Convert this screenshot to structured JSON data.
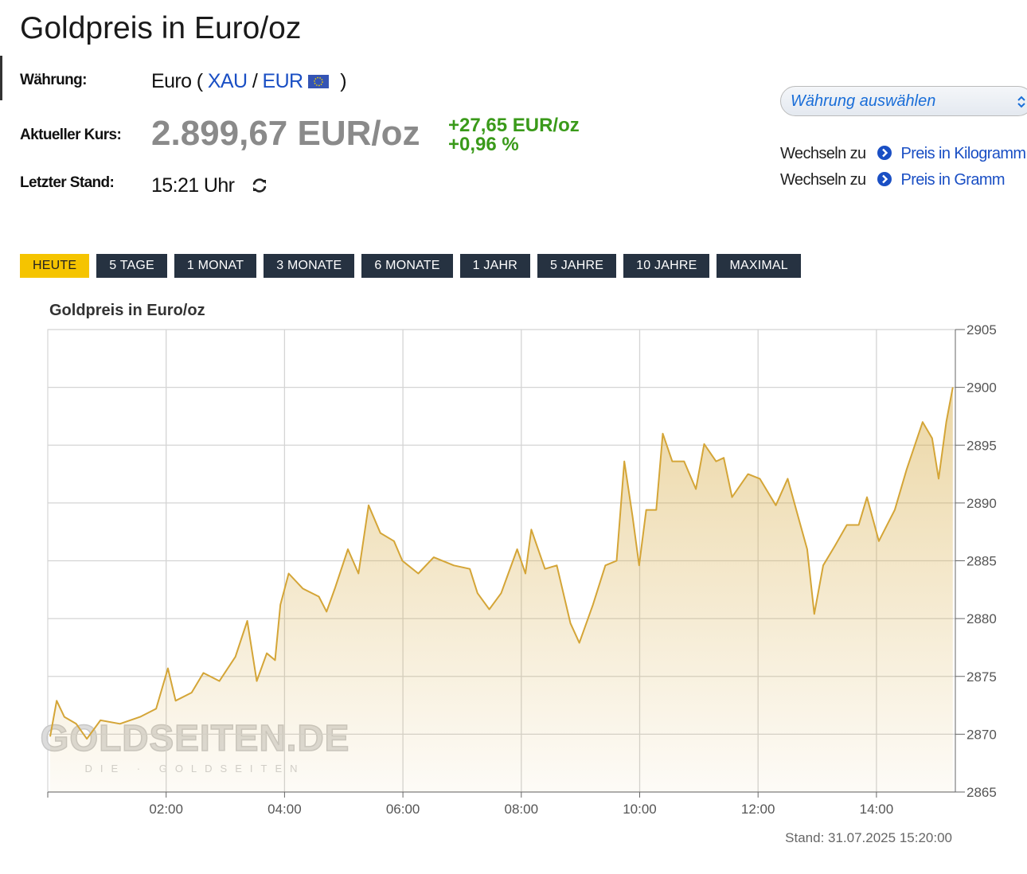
{
  "header": {
    "title": "Goldpreis in Euro/oz"
  },
  "info": {
    "currency_label": "Währung:",
    "currency_prefix": "Euro (",
    "base": "XAU",
    "separator": "/",
    "quote": "EUR",
    "currency_suffix": ")",
    "price_label": "Aktueller Kurs:",
    "price": "2.899,67 EUR/oz",
    "change_abs": "+27,65 EUR/oz",
    "change_pct": "+0,96 %",
    "time_label": "Letzter Stand:",
    "time": "15:21 Uhr"
  },
  "currency_select": "Währung auswählen",
  "links": [
    {
      "prefix": "Wechseln zu",
      "label": "Preis in Kilogramm"
    },
    {
      "prefix": "Wechseln zu",
      "label": "Preis in Gramm"
    }
  ],
  "tabs": [
    "HEUTE",
    "5 TAGE",
    "1 MONAT",
    "3 MONATE",
    "6 MONATE",
    "1 JAHR",
    "5 JAHRE",
    "10 JAHRE",
    "MAXIMAL"
  ],
  "active_tab": 0,
  "chart_data": {
    "type": "area",
    "title": "Goldpreis in Euro/oz",
    "color": "#d4a537",
    "x": [
      0.04,
      0.15,
      0.28,
      0.48,
      0.66,
      0.89,
      1.22,
      1.56,
      1.83,
      2.03,
      2.16,
      2.43,
      2.63,
      2.9,
      3.17,
      3.37,
      3.53,
      3.7,
      3.84,
      3.93,
      4.07,
      4.31,
      4.58,
      4.71,
      4.85,
      5.07,
      5.25,
      5.42,
      5.62,
      5.85,
      5.99,
      6.26,
      6.52,
      6.86,
      7.13,
      7.26,
      7.46,
      7.66,
      7.93,
      8.07,
      8.17,
      8.4,
      8.6,
      8.83,
      8.98,
      9.21,
      9.42,
      9.61,
      9.74,
      9.88,
      9.99,
      10.11,
      10.28,
      10.39,
      10.55,
      10.75,
      10.95,
      11.09,
      11.29,
      11.42,
      11.56,
      11.83,
      12.03,
      12.3,
      12.5,
      12.7,
      12.83,
      12.95,
      13.1,
      13.3,
      13.5,
      13.7,
      13.84,
      14.04,
      14.31,
      14.51,
      14.78,
      14.94,
      15.05,
      15.18,
      15.29
    ],
    "values": [
      2869.8,
      2872.9,
      2871.5,
      2870.9,
      2869.6,
      2871.2,
      2870.9,
      2871.5,
      2872.2,
      2875.7,
      2872.9,
      2873.6,
      2875.3,
      2874.6,
      2876.7,
      2879.8,
      2874.6,
      2877.0,
      2876.4,
      2881.2,
      2883.9,
      2882.6,
      2881.9,
      2880.6,
      2882.6,
      2886.0,
      2883.9,
      2889.8,
      2887.4,
      2886.7,
      2885.0,
      2883.9,
      2885.3,
      2884.6,
      2884.3,
      2882.2,
      2880.8,
      2882.2,
      2886.0,
      2883.9,
      2887.7,
      2884.3,
      2884.6,
      2879.6,
      2877.9,
      2881.2,
      2884.6,
      2885.0,
      2893.6,
      2888.8,
      2884.6,
      2889.4,
      2889.4,
      2896.0,
      2893.6,
      2893.6,
      2891.2,
      2895.1,
      2893.6,
      2893.9,
      2890.5,
      2892.5,
      2892.1,
      2889.8,
      2892.1,
      2888.4,
      2886.0,
      2880.4,
      2884.6,
      2886.3,
      2888.1,
      2888.1,
      2890.5,
      2886.7,
      2889.4,
      2892.9,
      2897.0,
      2895.6,
      2892.1,
      2897.0,
      2900.0
    ],
    "xlim": [
      0,
      15.333
    ],
    "xticks": [
      {
        "value": 2,
        "label": "02:00"
      },
      {
        "value": 4,
        "label": "04:00"
      },
      {
        "value": 6,
        "label": "06:00"
      },
      {
        "value": 8,
        "label": "08:00"
      },
      {
        "value": 10,
        "label": "10:00"
      },
      {
        "value": 12,
        "label": "12:00"
      },
      {
        "value": 14,
        "label": "14:00"
      }
    ],
    "ylim": [
      2865,
      2905
    ],
    "yticks": [
      2865,
      2870,
      2875,
      2880,
      2885,
      2890,
      2895,
      2900,
      2905
    ],
    "grid": true,
    "footnote": "Stand: 31.07.2025 15:20:00",
    "watermark": "GOLDSEITEN.DE",
    "watermark_sub": "DIE · GOLDSEITEN"
  }
}
